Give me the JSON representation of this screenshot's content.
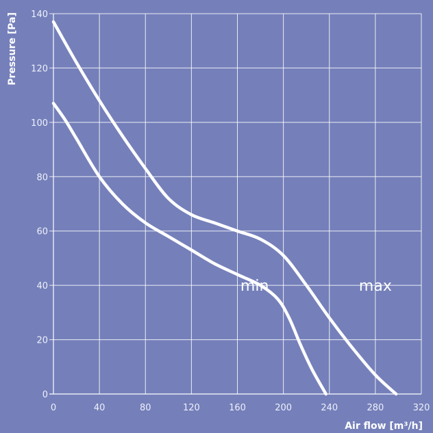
{
  "chart_data": {
    "type": "line",
    "xlabel": "Air flow [m³/h]",
    "ylabel": "Pressure [Pa]",
    "xlim": [
      0,
      320
    ],
    "ylim": [
      0,
      140
    ],
    "xticks": [
      0,
      40,
      80,
      120,
      160,
      200,
      240,
      280,
      320
    ],
    "yticks": [
      0,
      20,
      40,
      60,
      80,
      100,
      120,
      140
    ],
    "grid": true,
    "legend": "none",
    "line_color": "#ffffff",
    "background_color": "#7580ba",
    "series": [
      {
        "name": "max",
        "x": [
          0,
          20,
          40,
          60,
          80,
          100,
          120,
          140,
          160,
          180,
          200,
          220,
          240,
          260,
          280,
          298
        ],
        "y": [
          137,
          122,
          108,
          95,
          83,
          72,
          66,
          63,
          60,
          57,
          51,
          40,
          28,
          17,
          7,
          0
        ]
      },
      {
        "name": "min",
        "x": [
          0,
          10,
          20,
          40,
          60,
          80,
          100,
          120,
          140,
          160,
          180,
          195,
          205,
          215,
          225,
          237
        ],
        "y": [
          107,
          101,
          94,
          80,
          70,
          63,
          58,
          53,
          48,
          44,
          40,
          35,
          28,
          18,
          9,
          0
        ]
      }
    ]
  }
}
